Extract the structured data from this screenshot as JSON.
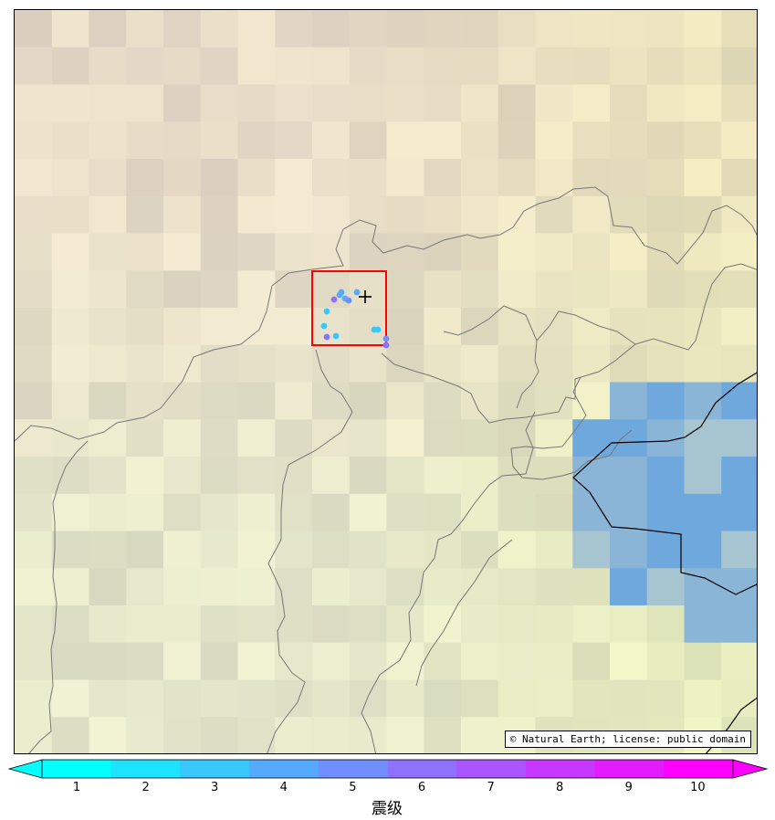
{
  "map": {
    "attribution": "© Natural Earth; license: public domain",
    "study_region_color": "#ff0000",
    "epicenter_marker": "plus-icon",
    "events": [
      {
        "mag": 4.6
      },
      {
        "mag": 3.4
      },
      {
        "mag": 4.1
      },
      {
        "mag": 4.8
      },
      {
        "mag": 5.6
      },
      {
        "mag": 6.0
      },
      {
        "mag": 4.2
      },
      {
        "mag": 3.6
      },
      {
        "mag": 6.2
      },
      {
        "mag": 3.1
      },
      {
        "mag": 3.9
      },
      {
        "mag": 3.5
      },
      {
        "mag": 5.8
      },
      {
        "mag": 6.0
      }
    ]
  },
  "colorbar": {
    "title": "震级",
    "ticks": [
      "1",
      "2",
      "3",
      "4",
      "5",
      "6",
      "7",
      "8",
      "9",
      "10"
    ],
    "colors": [
      "#00ffff",
      "#1ce3ff",
      "#38c7ff",
      "#55aaff",
      "#718eff",
      "#8e71ff",
      "#aa55ff",
      "#c738ff",
      "#e31cff",
      "#ff00ff"
    ],
    "extend": "both"
  }
}
